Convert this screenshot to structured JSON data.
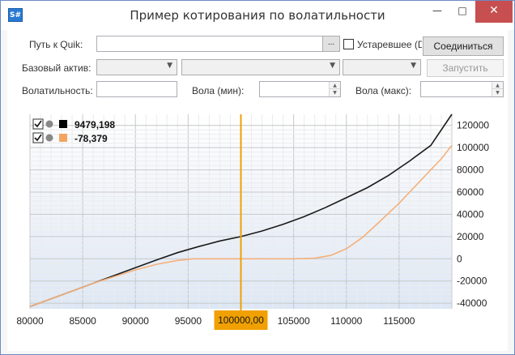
{
  "window": {
    "app_icon": "S#",
    "title": "Пример котирования по волатильности",
    "minimize_glyph": "—",
    "maximize_glyph": "□",
    "close_glyph": "✕"
  },
  "form": {
    "quik_path_label": "Путь к Quik:",
    "quik_path_value": "",
    "browse_label": "...",
    "outdated_label": "Устаревшее (D",
    "connect_label": "Соединиться",
    "underlying_label": "Базовый актив:",
    "start_label": "Запустить",
    "volatility_label": "Волатильность:",
    "volatility_value": "",
    "vol_min_label": "Вола (мин):",
    "vol_min_value": "",
    "vol_max_label": "Вола (макс):",
    "vol_max_value": ""
  },
  "legend": [
    {
      "value": "9479,198",
      "color": "#000000"
    },
    {
      "value": "-78,379",
      "color": "#f5a460"
    }
  ],
  "cursor": {
    "label": "100000,00",
    "color": "#f0a000"
  },
  "colors": {
    "accent": "#f0a000",
    "series1": "#1a1a1a",
    "series2": "#f5b07a"
  },
  "chart_data": {
    "type": "line",
    "x_ticks": [
      "80000",
      "85000",
      "90000",
      "95000",
      "100000",
      "105000",
      "110000",
      "115000"
    ],
    "y_ticks": [
      "120000",
      "100000",
      "80000",
      "60000",
      "40000",
      "20000",
      "0",
      "-20000",
      "-40000"
    ],
    "xlim": [
      80000,
      120000
    ],
    "ylim": [
      -45000,
      130000
    ],
    "cursor_x": 100000,
    "series": [
      {
        "x": [
          80000,
          82000,
          84000,
          86000,
          88000,
          90000,
          92000,
          94000,
          96000,
          98000,
          100000,
          102000,
          104000,
          106000,
          108000,
          110000,
          112000,
          114000,
          116000,
          118000,
          120000
        ],
        "y": [
          -43000,
          -36000,
          -29000,
          -22000,
          -15000,
          -8000,
          -1000,
          5500,
          11000,
          16000,
          20000,
          25000,
          31000,
          38000,
          46000,
          55000,
          64000,
          75000,
          88000,
          102000,
          130000
        ]
      },
      {
        "x": [
          80000,
          82000,
          84000,
          86000,
          88000,
          90000,
          92000,
          94000,
          95500,
          97000,
          100000,
          103000,
          105000,
          107000,
          108500,
          110000,
          111500,
          113000,
          115000,
          117000,
          119000,
          120000
        ],
        "y": [
          -43000,
          -36000,
          -29000,
          -22000,
          -16000,
          -10000,
          -5000,
          -1500,
          0,
          0,
          0,
          0,
          0,
          500,
          3000,
          9000,
          19000,
          32000,
          50000,
          70000,
          90000,
          102000
        ]
      }
    ]
  }
}
